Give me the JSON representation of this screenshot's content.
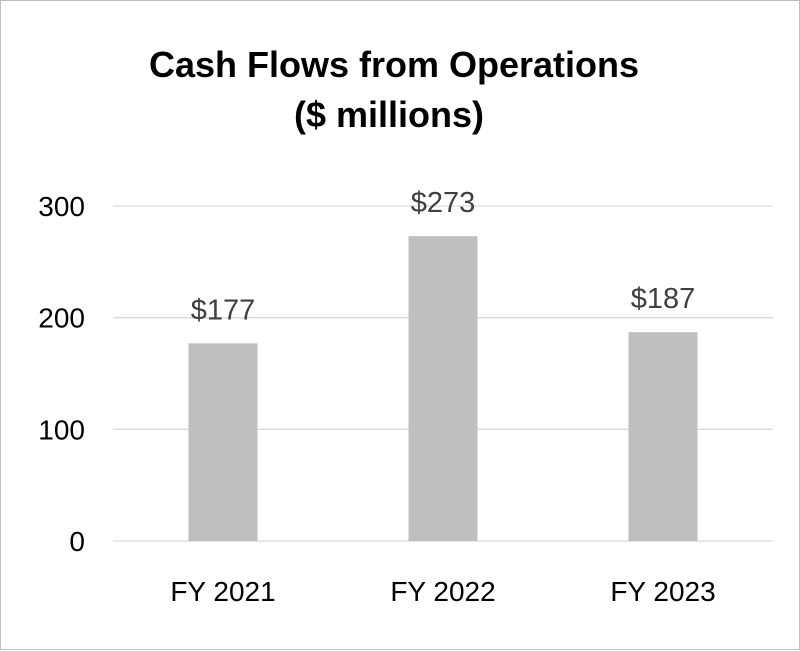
{
  "chart_data": {
    "type": "bar",
    "title": "Cash Flows from Operations",
    "subtitle": "($ millions)",
    "xlabel": "",
    "ylabel": "",
    "categories": [
      "FY 2021",
      "FY 2022",
      "FY 2023"
    ],
    "values": [
      177,
      273,
      187
    ],
    "data_labels": [
      "$177",
      "$273",
      "$187"
    ],
    "ylim": [
      0,
      300
    ],
    "yticks": [
      0,
      100,
      200,
      300
    ],
    "grid": true,
    "legend": "none",
    "bar_color": "#bfbfbf"
  }
}
